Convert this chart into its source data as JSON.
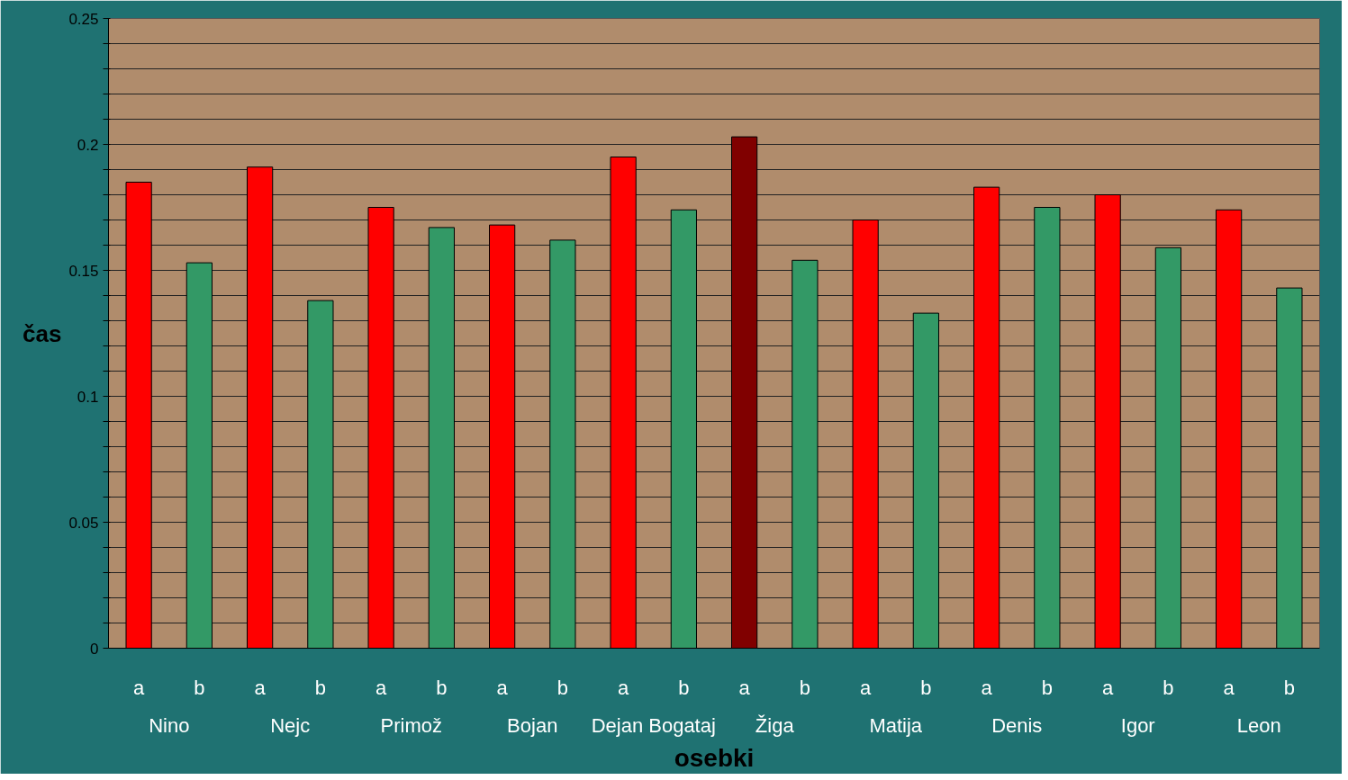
{
  "chart_data": {
    "type": "bar",
    "xlabel": "osebki",
    "ylabel": "čas",
    "categories": [
      "Nino",
      "Nejc",
      "Primož",
      "Bojan",
      "Dejan Bogataj",
      "Žiga",
      "Matija",
      "Denis",
      "Igor",
      "Leon"
    ],
    "series": [
      {
        "name": "a",
        "color": "#ff0000",
        "colors": [
          null,
          null,
          null,
          null,
          null,
          "#800000",
          null,
          null,
          null,
          null
        ],
        "values": [
          0.185,
          0.191,
          0.175,
          0.168,
          0.195,
          0.203,
          0.17,
          0.183,
          0.18,
          0.174
        ]
      },
      {
        "name": "b",
        "color": "#339966",
        "values": [
          0.153,
          0.138,
          0.167,
          0.162,
          0.174,
          0.154,
          0.133,
          0.175,
          0.159,
          0.143
        ]
      }
    ],
    "ylim": [
      0,
      0.25
    ],
    "yticks": [
      0,
      {
        "value": 0.01,
        "label": null
      },
      {
        "value": 0.02,
        "label": null
      },
      {
        "value": 0.03,
        "label": null
      },
      {
        "value": 0.04,
        "label": null
      },
      0.05,
      {
        "value": 0.06,
        "label": null
      },
      {
        "value": 0.07,
        "label": null
      },
      {
        "value": 0.08,
        "label": null
      },
      {
        "value": 0.09,
        "label": null
      },
      0.1,
      {
        "value": 0.11,
        "label": null
      },
      {
        "value": 0.12,
        "label": null
      },
      {
        "value": 0.13,
        "label": null
      },
      {
        "value": 0.14,
        "label": null
      },
      0.15,
      {
        "value": 0.16,
        "label": null
      },
      {
        "value": 0.17,
        "label": null
      },
      {
        "value": 0.18,
        "label": null
      },
      {
        "value": 0.19,
        "label": null
      },
      0.2,
      {
        "value": 0.21,
        "label": null
      },
      {
        "value": 0.22,
        "label": null
      },
      {
        "value": 0.23,
        "label": null
      },
      {
        "value": 0.24,
        "label": null
      },
      0.25
    ],
    "grid": "y"
  }
}
